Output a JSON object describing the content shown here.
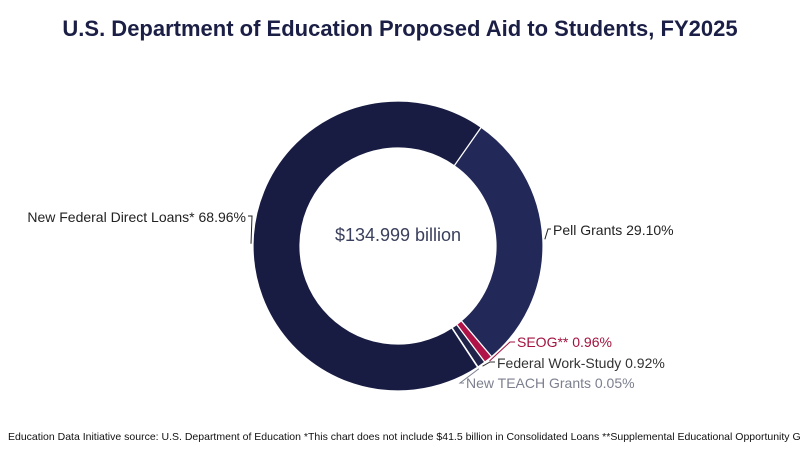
{
  "title": "U.S. Department of Education Proposed Aid to Students, FY2025",
  "footer": "Education Data Initiative source: U.S. Department of Education  *This chart does not include $41.5 billion in Consolidated Loans **Supplemental Educational Opportunity Grant",
  "chart_data": {
    "type": "pie",
    "donut": true,
    "center_label": "$134.999 billion",
    "slices": [
      {
        "label": "Pell Grants",
        "display_label": "Pell Grants 29.10%",
        "value": 29.1,
        "color": "#222958",
        "label_color": "#222222"
      },
      {
        "label": "SEOG**",
        "display_label": "SEOG** 0.96%",
        "value": 0.96,
        "color": "#b01348",
        "label_color": "#a3123f"
      },
      {
        "label": "Federal Work-Study",
        "display_label": "Federal Work-Study 0.92%",
        "value": 0.92,
        "color": "#20234a",
        "label_color": "#333333"
      },
      {
        "label": "New TEACH Grants",
        "display_label": "New TEACH Grants 0.05%",
        "value": 0.05,
        "color": "#888ea3",
        "label_color": "#7c7f8e"
      },
      {
        "label": "New Federal Direct Loans*",
        "display_label": "New Federal Direct Loans* 68.96%",
        "value": 68.96,
        "color": "#181c42",
        "label_color": "#222222"
      }
    ]
  }
}
